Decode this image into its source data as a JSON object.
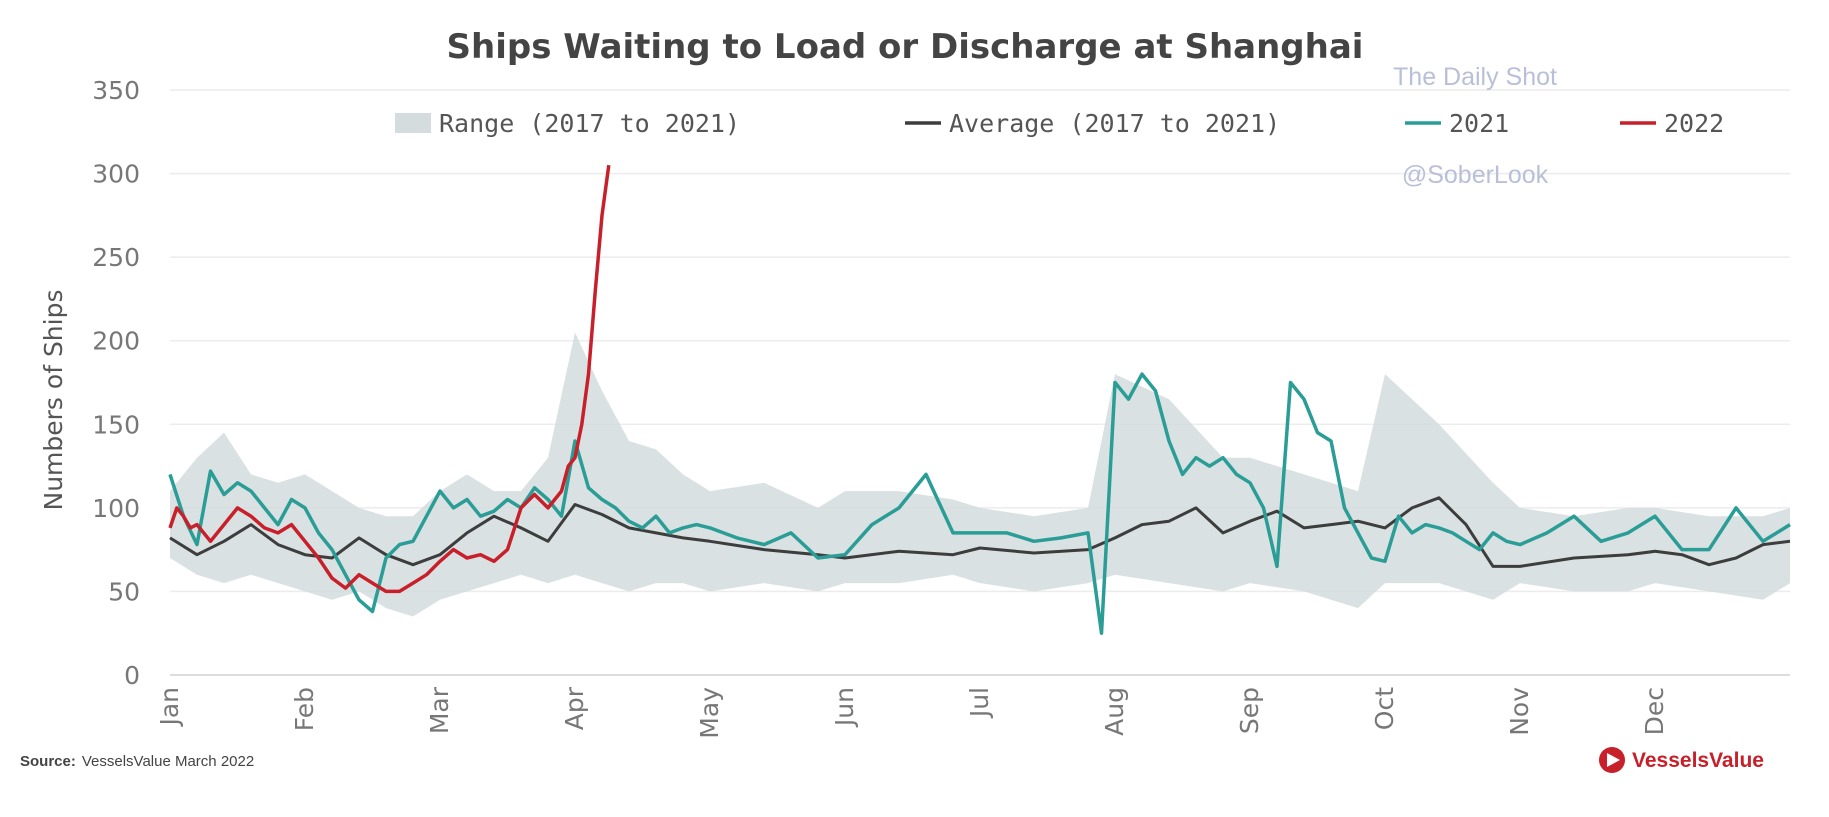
{
  "chart_data": {
    "type": "line",
    "title": "Ships Waiting to Load or Discharge at Shanghai",
    "ylabel": "Numbers of Ships",
    "xlabel": "",
    "ylim": [
      0,
      350
    ],
    "yticks": [
      0,
      50,
      100,
      150,
      200,
      250,
      300,
      350
    ],
    "months": [
      "Jan",
      "Feb",
      "Mar",
      "Apr",
      "May",
      "Jun",
      "Jul",
      "Aug",
      "Sep",
      "Oct",
      "Nov",
      "Dec"
    ],
    "legend": [
      {
        "label": "Range (2017 to 2021)",
        "kind": "area",
        "color": "#d4dcdd"
      },
      {
        "label": "Average (2017 to 2021)",
        "kind": "line",
        "color": "#3d3d3d"
      },
      {
        "label": "2021",
        "kind": "line",
        "color": "#2a9d96"
      },
      {
        "label": "2022",
        "kind": "line",
        "color": "#c8202a"
      }
    ],
    "series": [
      {
        "name": "Range (2017 to 2021)",
        "type": "range",
        "x": [
          0,
          0.2,
          0.4,
          0.6,
          0.8,
          1.0,
          1.2,
          1.4,
          1.6,
          1.8,
          2.0,
          2.2,
          2.4,
          2.6,
          2.8,
          3.0,
          3.2,
          3.4,
          3.6,
          3.8,
          4.0,
          4.4,
          4.8,
          5.0,
          5.4,
          5.8,
          6.0,
          6.4,
          6.8,
          7.0,
          7.4,
          7.8,
          8.0,
          8.4,
          8.8,
          9.0,
          9.4,
          9.8,
          10.0,
          10.4,
          10.8,
          11.0,
          11.4,
          11.8,
          12.0
        ],
        "low": [
          70,
          60,
          55,
          60,
          55,
          50,
          45,
          50,
          40,
          35,
          45,
          50,
          55,
          60,
          55,
          60,
          55,
          50,
          55,
          55,
          50,
          55,
          50,
          55,
          55,
          60,
          55,
          50,
          55,
          60,
          55,
          50,
          55,
          50,
          40,
          55,
          55,
          45,
          55,
          50,
          50,
          55,
          50,
          45,
          55
        ],
        "high": [
          110,
          130,
          145,
          120,
          115,
          120,
          110,
          100,
          95,
          95,
          110,
          120,
          110,
          110,
          130,
          205,
          170,
          140,
          135,
          120,
          110,
          115,
          100,
          110,
          110,
          105,
          100,
          95,
          100,
          180,
          165,
          130,
          130,
          120,
          110,
          180,
          150,
          115,
          100,
          95,
          100,
          100,
          95,
          95,
          100
        ]
      },
      {
        "name": "Average (2017 to 2021)",
        "x": [
          0,
          0.2,
          0.4,
          0.6,
          0.8,
          1.0,
          1.2,
          1.4,
          1.6,
          1.8,
          2.0,
          2.2,
          2.4,
          2.6,
          2.8,
          3.0,
          3.2,
          3.4,
          3.6,
          3.8,
          4.0,
          4.4,
          4.8,
          5.0,
          5.4,
          5.8,
          6.0,
          6.4,
          6.8,
          7.0,
          7.2,
          7.4,
          7.6,
          7.8,
          8.0,
          8.2,
          8.4,
          8.6,
          8.8,
          9.0,
          9.2,
          9.4,
          9.6,
          9.8,
          10.0,
          10.4,
          10.8,
          11.0,
          11.2,
          11.4,
          11.6,
          11.8,
          12.0
        ],
        "values": [
          82,
          72,
          80,
          90,
          78,
          72,
          70,
          82,
          72,
          66,
          72,
          85,
          95,
          88,
          80,
          102,
          96,
          88,
          85,
          82,
          80,
          75,
          72,
          70,
          74,
          72,
          76,
          73,
          75,
          82,
          90,
          92,
          100,
          85,
          92,
          98,
          88,
          90,
          92,
          88,
          100,
          106,
          90,
          65,
          65,
          70,
          72,
          74,
          72,
          66,
          70,
          78,
          80
        ]
      },
      {
        "name": "2021",
        "x": [
          0,
          0.1,
          0.2,
          0.3,
          0.4,
          0.5,
          0.6,
          0.7,
          0.8,
          0.9,
          1.0,
          1.1,
          1.2,
          1.3,
          1.4,
          1.5,
          1.6,
          1.7,
          1.8,
          1.9,
          2.0,
          2.1,
          2.2,
          2.3,
          2.4,
          2.5,
          2.6,
          2.7,
          2.8,
          2.9,
          3.0,
          3.1,
          3.2,
          3.3,
          3.4,
          3.5,
          3.6,
          3.7,
          3.8,
          3.9,
          4.0,
          4.2,
          4.4,
          4.6,
          4.8,
          5.0,
          5.2,
          5.4,
          5.6,
          5.8,
          6.0,
          6.2,
          6.4,
          6.6,
          6.8,
          6.9,
          7.0,
          7.1,
          7.2,
          7.3,
          7.4,
          7.5,
          7.6,
          7.7,
          7.8,
          7.9,
          8.0,
          8.1,
          8.2,
          8.3,
          8.4,
          8.5,
          8.6,
          8.7,
          8.8,
          8.9,
          9.0,
          9.1,
          9.2,
          9.3,
          9.4,
          9.5,
          9.6,
          9.7,
          9.8,
          9.9,
          10.0,
          10.2,
          10.4,
          10.6,
          10.8,
          11.0,
          11.2,
          11.4,
          11.6,
          11.8,
          12.0
        ],
        "values": [
          120,
          95,
          78,
          122,
          108,
          115,
          110,
          100,
          90,
          105,
          100,
          85,
          75,
          60,
          45,
          38,
          70,
          78,
          80,
          95,
          110,
          100,
          105,
          95,
          98,
          105,
          100,
          112,
          105,
          95,
          140,
          112,
          105,
          100,
          92,
          88,
          95,
          85,
          88,
          90,
          88,
          82,
          78,
          85,
          70,
          72,
          90,
          100,
          120,
          85,
          85,
          85,
          80,
          82,
          85,
          25,
          175,
          165,
          180,
          170,
          140,
          120,
          130,
          125,
          130,
          120,
          115,
          100,
          65,
          175,
          165,
          145,
          140,
          100,
          85,
          70,
          68,
          95,
          85,
          90,
          88,
          85,
          80,
          75,
          85,
          80,
          78,
          85,
          95,
          80,
          85,
          95,
          75,
          75,
          100,
          80,
          90
        ]
      },
      {
        "name": "2022",
        "x": [
          0,
          0.05,
          0.1,
          0.15,
          0.2,
          0.3,
          0.4,
          0.5,
          0.6,
          0.7,
          0.8,
          0.9,
          1.0,
          1.1,
          1.2,
          1.3,
          1.4,
          1.5,
          1.6,
          1.7,
          1.8,
          1.9,
          2.0,
          2.1,
          2.2,
          2.3,
          2.4,
          2.5,
          2.6,
          2.7,
          2.8,
          2.9,
          2.95,
          3.0,
          3.05,
          3.1,
          3.15,
          3.2,
          3.25
        ],
        "values": [
          88,
          100,
          95,
          88,
          90,
          80,
          90,
          100,
          95,
          88,
          85,
          90,
          80,
          70,
          58,
          52,
          60,
          55,
          50,
          50,
          55,
          60,
          68,
          75,
          70,
          72,
          68,
          75,
          100,
          108,
          100,
          110,
          125,
          130,
          150,
          180,
          230,
          275,
          305
        ]
      }
    ]
  },
  "watermark": {
    "line1": "The Daily Shot",
    "line2": "@SoberLook"
  },
  "source": {
    "label": "Source:",
    "text": "VesselsValue March 2022"
  },
  "brand": {
    "name": "VesselsValue"
  }
}
